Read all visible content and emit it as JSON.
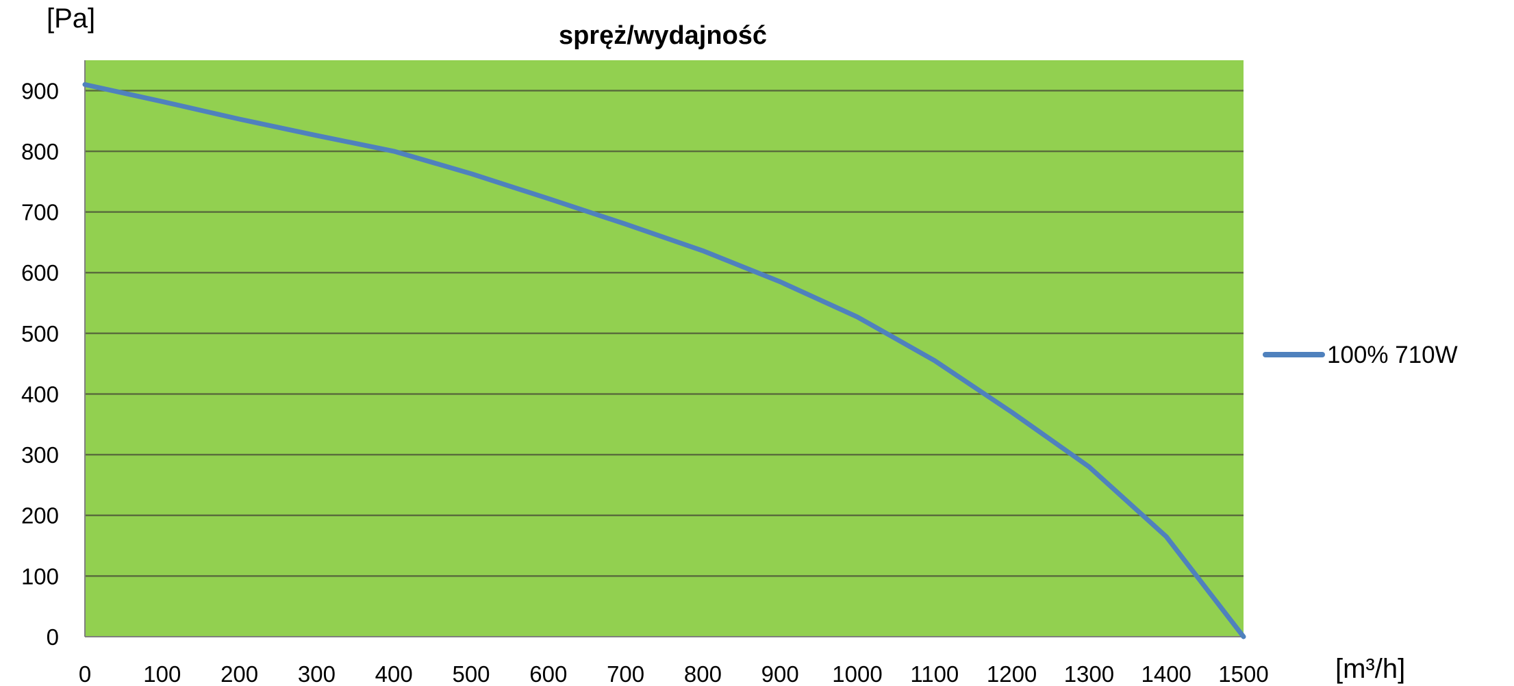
{
  "chart_data": {
    "type": "line",
    "title": "spręż/wydajność",
    "ylabel": "[Pa]",
    "xlabel": "[m³/h]",
    "xlim": [
      0,
      1500
    ],
    "ylim": [
      0,
      950
    ],
    "x_ticks": [
      0,
      100,
      200,
      300,
      400,
      500,
      600,
      700,
      800,
      900,
      1000,
      1100,
      1200,
      1300,
      1400,
      1500
    ],
    "y_ticks": [
      0,
      100,
      200,
      300,
      400,
      500,
      600,
      700,
      800,
      900
    ],
    "grid": "horizontal",
    "legend_position": "right",
    "plot_background": "#92D050",
    "gridline_color": "#5a6e3c",
    "series": [
      {
        "name": "100% 710W",
        "color": "#4F81BD",
        "x": [
          0,
          100,
          200,
          300,
          400,
          500,
          600,
          700,
          800,
          900,
          1000,
          1100,
          1200,
          1300,
          1400,
          1500
        ],
        "values": [
          910,
          882,
          853,
          826,
          800,
          763,
          722,
          680,
          636,
          585,
          527,
          455,
          370,
          280,
          165,
          0
        ]
      }
    ]
  }
}
